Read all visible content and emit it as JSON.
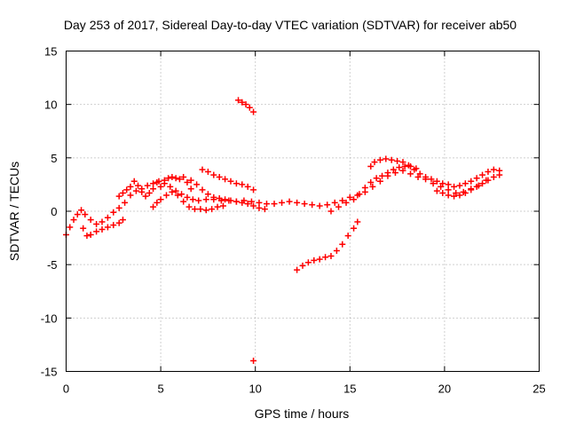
{
  "chart_data": {
    "type": "scatter",
    "title": "Day 253 of 2017, Sidereal Day-to-day VTEC variation (SDTVAR) for receiver ab50",
    "xlabel": "GPS time / hours",
    "ylabel": "SDTVAR / TECUs",
    "xlim": [
      0,
      25
    ],
    "ylim": [
      -15,
      15
    ],
    "xticks": [
      "0",
      "5",
      "10",
      "15",
      "20",
      "25"
    ],
    "yticks": [
      "-15",
      "-10",
      "-5",
      "0",
      "5",
      "10",
      "15"
    ],
    "grid": true,
    "marker": "plus",
    "series": [
      {
        "name": "track-main-low",
        "color": "#ff0000",
        "points": [
          [
            0.0,
            -2.2
          ],
          [
            0.2,
            -1.5
          ],
          [
            0.4,
            -0.8
          ],
          [
            0.6,
            -0.3
          ],
          [
            0.8,
            0.1
          ],
          [
            1.0,
            -0.3
          ],
          [
            1.3,
            -0.8
          ],
          [
            1.6,
            -1.2
          ],
          [
            1.9,
            -1.0
          ],
          [
            2.2,
            -0.6
          ],
          [
            2.5,
            -0.1
          ],
          [
            2.8,
            0.3
          ],
          [
            3.1,
            0.8
          ],
          [
            3.4,
            1.5
          ],
          [
            3.7,
            1.9
          ],
          [
            4.0,
            2.1
          ],
          [
            4.3,
            2.4
          ],
          [
            4.6,
            2.6
          ],
          [
            4.9,
            2.8
          ],
          [
            5.2,
            2.6
          ],
          [
            5.5,
            2.3
          ],
          [
            5.8,
            1.9
          ],
          [
            6.1,
            1.6
          ],
          [
            6.4,
            1.3
          ],
          [
            6.7,
            1.1
          ],
          [
            7.0,
            1.0
          ],
          [
            7.4,
            1.1
          ],
          [
            7.8,
            1.1
          ],
          [
            8.2,
            1.0
          ],
          [
            8.6,
            1.0
          ],
          [
            9.0,
            0.9
          ],
          [
            9.4,
            1.0
          ],
          [
            9.8,
            0.9
          ],
          [
            10.2,
            0.8
          ],
          [
            10.6,
            0.7
          ],
          [
            11.0,
            0.7
          ],
          [
            11.4,
            0.8
          ],
          [
            11.8,
            0.9
          ],
          [
            12.2,
            0.8
          ],
          [
            12.6,
            0.7
          ],
          [
            13.0,
            0.6
          ],
          [
            13.4,
            0.5
          ],
          [
            13.8,
            0.6
          ],
          [
            14.2,
            0.8
          ],
          [
            14.6,
            1.0
          ],
          [
            15.0,
            1.3
          ],
          [
            15.4,
            1.5
          ],
          [
            15.8,
            1.8
          ],
          [
            16.2,
            2.3
          ],
          [
            16.6,
            2.8
          ],
          [
            17.0,
            3.3
          ],
          [
            17.4,
            3.6
          ],
          [
            17.8,
            3.8
          ],
          [
            18.2,
            3.5
          ],
          [
            18.6,
            3.2
          ],
          [
            19.0,
            3.0
          ],
          [
            19.4,
            2.6
          ],
          [
            19.8,
            2.3
          ],
          [
            20.2,
            2.0
          ],
          [
            20.6,
            1.7
          ],
          [
            21.0,
            1.8
          ],
          [
            21.4,
            2.1
          ],
          [
            21.8,
            2.4
          ],
          [
            22.2,
            2.9
          ],
          [
            22.6,
            3.2
          ],
          [
            22.9,
            3.4
          ]
        ]
      },
      {
        "name": "track-early-dip",
        "color": "#ff0000",
        "points": [
          [
            0.9,
            -1.6
          ],
          [
            1.1,
            -2.3
          ],
          [
            1.3,
            -2.2
          ],
          [
            1.6,
            -1.9
          ],
          [
            1.9,
            -1.7
          ],
          [
            2.2,
            -1.5
          ],
          [
            2.5,
            -1.3
          ],
          [
            2.8,
            -1.1
          ],
          [
            3.0,
            -0.8
          ]
        ]
      },
      {
        "name": "track-early-upper",
        "color": "#ff0000",
        "points": [
          [
            2.8,
            1.4
          ],
          [
            3.0,
            1.7
          ],
          [
            3.2,
            2.0
          ],
          [
            3.4,
            2.3
          ],
          [
            3.6,
            2.8
          ],
          [
            3.8,
            2.4
          ],
          [
            4.0,
            1.8
          ],
          [
            4.2,
            1.4
          ],
          [
            4.4,
            1.7
          ],
          [
            4.6,
            2.1
          ],
          [
            4.8,
            2.7
          ],
          [
            5.0,
            2.3
          ],
          [
            5.2,
            2.9
          ],
          [
            5.4,
            3.1
          ],
          [
            5.6,
            3.2
          ],
          [
            5.8,
            3.1
          ],
          [
            6.0,
            3.0
          ],
          [
            6.2,
            3.2
          ],
          [
            6.4,
            2.7
          ],
          [
            6.6,
            2.1
          ]
        ]
      },
      {
        "name": "track-mid-arc-low",
        "color": "#ff0000",
        "points": [
          [
            4.6,
            0.4
          ],
          [
            4.8,
            0.8
          ],
          [
            5.0,
            1.1
          ],
          [
            5.3,
            1.5
          ],
          [
            5.6,
            1.8
          ],
          [
            5.9,
            1.5
          ],
          [
            6.2,
            0.9
          ],
          [
            6.5,
            0.4
          ],
          [
            6.8,
            0.2
          ],
          [
            7.1,
            0.2
          ],
          [
            7.4,
            0.1
          ],
          [
            7.7,
            0.2
          ],
          [
            8.0,
            0.4
          ],
          [
            8.3,
            0.5
          ]
        ]
      },
      {
        "name": "track-mid-upper",
        "color": "#ff0000",
        "points": [
          [
            6.6,
            2.9
          ],
          [
            6.9,
            2.5
          ],
          [
            7.2,
            2.0
          ],
          [
            7.5,
            1.6
          ],
          [
            7.8,
            1.3
          ],
          [
            8.1,
            1.2
          ],
          [
            8.4,
            1.1
          ],
          [
            8.7,
            1.0
          ],
          [
            9.0,
            0.9
          ],
          [
            9.3,
            0.8
          ],
          [
            9.6,
            0.7
          ],
          [
            9.9,
            0.5
          ],
          [
            10.2,
            0.3
          ],
          [
            10.5,
            0.2
          ]
        ]
      },
      {
        "name": "track-mid-top",
        "color": "#ff0000",
        "points": [
          [
            7.2,
            3.9
          ],
          [
            7.5,
            3.7
          ],
          [
            7.8,
            3.4
          ],
          [
            8.1,
            3.2
          ],
          [
            8.4,
            3.0
          ],
          [
            8.7,
            2.8
          ],
          [
            9.0,
            2.6
          ],
          [
            9.3,
            2.5
          ],
          [
            9.6,
            2.3
          ],
          [
            9.9,
            2.0
          ]
        ]
      },
      {
        "name": "track-isolated-high",
        "color": "#ff0000",
        "points": [
          [
            9.1,
            10.4
          ],
          [
            9.3,
            10.2
          ],
          [
            9.5,
            10.0
          ],
          [
            9.7,
            9.7
          ],
          [
            9.9,
            9.3
          ]
        ]
      },
      {
        "name": "track-late-rise",
        "color": "#ff0000",
        "points": [
          [
            14.0,
            0.0
          ],
          [
            14.4,
            0.4
          ],
          [
            14.8,
            0.8
          ],
          [
            15.2,
            1.1
          ],
          [
            15.5,
            1.6
          ],
          [
            15.8,
            2.2
          ],
          [
            16.1,
            2.7
          ],
          [
            16.4,
            3.1
          ],
          [
            16.7,
            3.3
          ],
          [
            17.0,
            3.6
          ],
          [
            17.3,
            3.9
          ],
          [
            17.6,
            4.1
          ],
          [
            17.9,
            4.2
          ],
          [
            18.2,
            4.2
          ],
          [
            18.5,
            4.0
          ]
        ]
      },
      {
        "name": "track-late-top",
        "color": "#ff0000",
        "points": [
          [
            16.1,
            4.2
          ],
          [
            16.3,
            4.6
          ],
          [
            16.6,
            4.8
          ],
          [
            16.9,
            4.9
          ],
          [
            17.2,
            4.8
          ],
          [
            17.5,
            4.7
          ],
          [
            17.8,
            4.6
          ],
          [
            18.1,
            4.3
          ],
          [
            18.4,
            3.9
          ],
          [
            18.7,
            3.5
          ],
          [
            19.0,
            3.2
          ],
          [
            19.3,
            3.0
          ],
          [
            19.6,
            2.8
          ],
          [
            19.9,
            2.6
          ],
          [
            20.2,
            2.5
          ],
          [
            20.5,
            2.3
          ],
          [
            20.8,
            2.4
          ],
          [
            21.1,
            2.6
          ],
          [
            21.4,
            2.8
          ],
          [
            21.7,
            3.1
          ],
          [
            22.0,
            3.4
          ],
          [
            22.3,
            3.7
          ],
          [
            22.6,
            3.9
          ],
          [
            22.9,
            3.8
          ]
        ]
      },
      {
        "name": "track-late-lower",
        "color": "#ff0000",
        "points": [
          [
            19.6,
            1.9
          ],
          [
            19.9,
            1.7
          ],
          [
            20.2,
            1.5
          ],
          [
            20.5,
            1.4
          ],
          [
            20.8,
            1.5
          ],
          [
            21.1,
            1.7
          ],
          [
            21.4,
            2.0
          ],
          [
            21.7,
            2.3
          ],
          [
            22.0,
            2.6
          ],
          [
            22.3,
            2.9
          ]
        ]
      },
      {
        "name": "track-descending",
        "color": "#ff0000",
        "points": [
          [
            12.2,
            -5.5
          ],
          [
            12.5,
            -5.1
          ],
          [
            12.8,
            -4.8
          ],
          [
            13.1,
            -4.6
          ],
          [
            13.4,
            -4.5
          ],
          [
            13.7,
            -4.3
          ],
          [
            14.0,
            -4.2
          ],
          [
            14.3,
            -3.7
          ],
          [
            14.6,
            -3.1
          ],
          [
            14.9,
            -2.3
          ],
          [
            15.2,
            -1.6
          ],
          [
            15.4,
            -1.0
          ]
        ]
      },
      {
        "name": "isolated-low",
        "color": "#ff0000",
        "points": [
          [
            9.9,
            -14.0
          ]
        ]
      }
    ]
  }
}
